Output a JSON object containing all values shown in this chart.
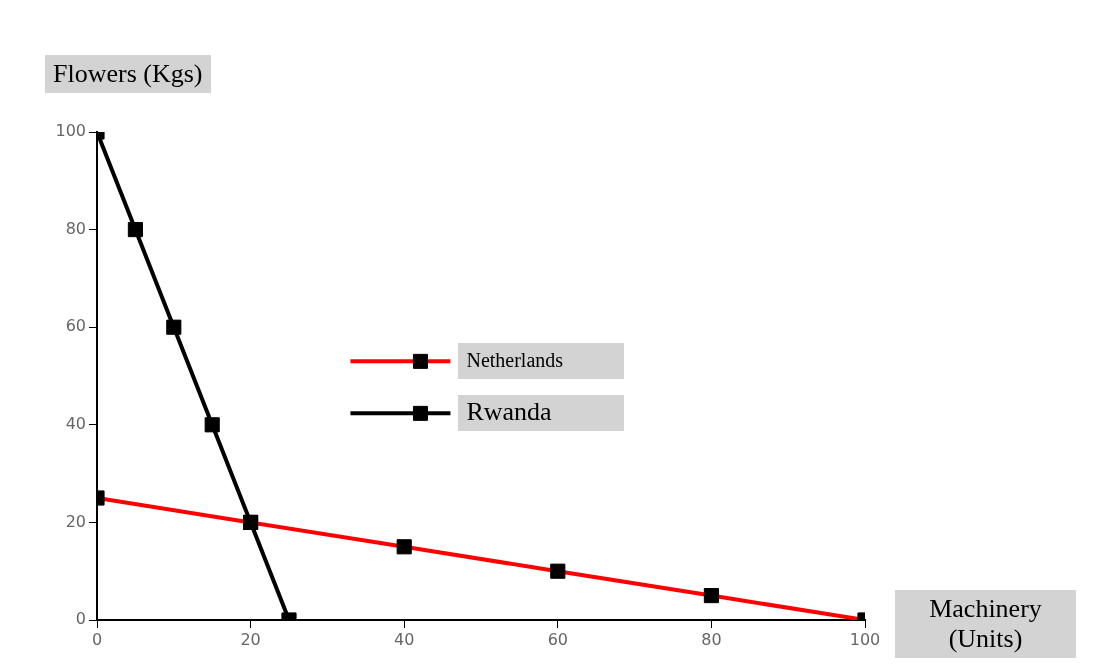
{
  "chart_data": {
    "type": "line",
    "xlabel": "Machinery (Units)",
    "ylabel": "Flowers (Kgs)",
    "xlim": [
      0,
      100
    ],
    "xticks": [
      0,
      20,
      40,
      60,
      80,
      100
    ],
    "ylim": [
      0,
      100
    ],
    "yticks": [
      0,
      20,
      40,
      60,
      80,
      100
    ],
    "grid": false,
    "legend": "center",
    "marker": "square",
    "line_style": "solid",
    "series": [
      {
        "name": "Netherlands",
        "color": "#ff0000",
        "x": [
          0,
          20,
          40,
          60,
          80,
          100
        ],
        "values": [
          25,
          20,
          15,
          10,
          5,
          0
        ]
      },
      {
        "name": "Rwanda",
        "color": "#000000",
        "x": [
          0,
          5,
          10,
          15,
          20,
          25
        ],
        "values": [
          100,
          80,
          60,
          40,
          20,
          0
        ]
      }
    ]
  }
}
